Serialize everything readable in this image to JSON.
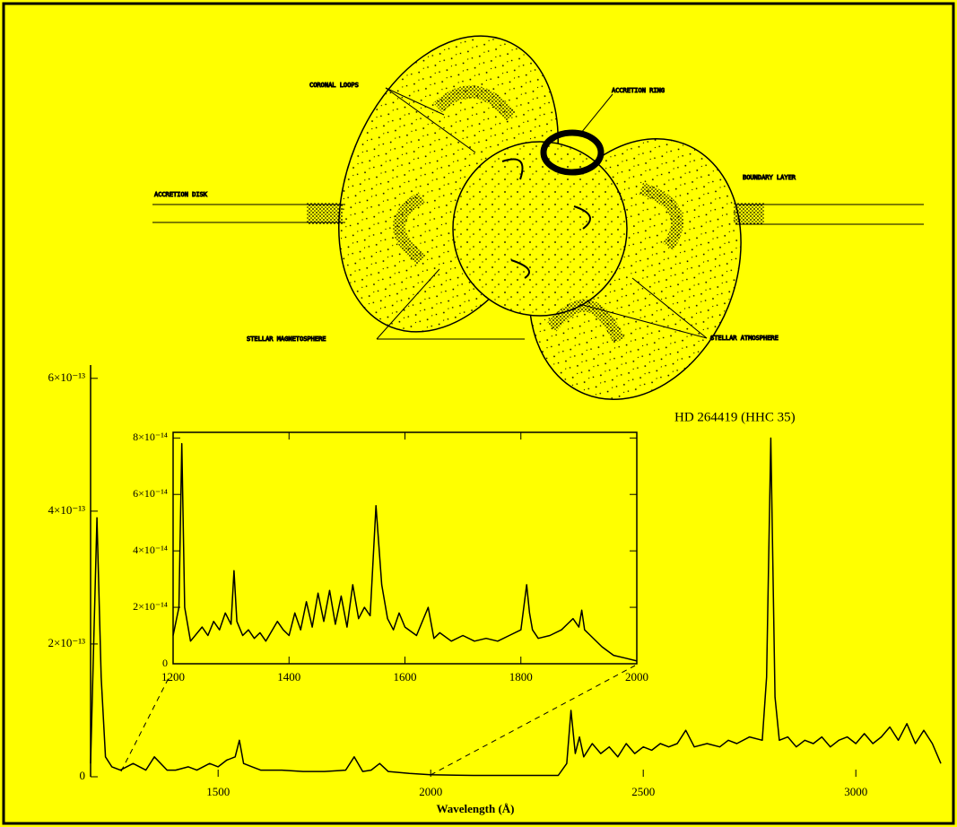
{
  "diagram": {
    "labels": [
      "CORONAL LOOPS",
      "ACCRETION RING",
      "ACCRETION DISK",
      "BOUNDARY LAYER",
      "STELLAR MAGNETOSPHERE",
      "STELLAR ATMOSPHERE"
    ]
  },
  "chart_data": [
    {
      "type": "line",
      "annotation": "HD 264419 (HHC 35)",
      "xlabel": "Wavelength (Å)",
      "xlim": [
        1200,
        3200
      ],
      "xticks": [
        1500,
        2000,
        2500,
        3000
      ],
      "ylim": [
        0,
        6.2e-13
      ],
      "yticks": [
        0,
        {
          "value": 2e-13,
          "label": "2×10⁻¹³"
        },
        {
          "value": 4e-13,
          "label": "4×10⁻¹³"
        },
        {
          "value": 6e-13,
          "label": "6×10⁻¹³"
        }
      ],
      "grid": false,
      "color": "#000000",
      "x": [
        1200,
        1215,
        1225,
        1235,
        1250,
        1270,
        1300,
        1330,
        1350,
        1380,
        1400,
        1430,
        1450,
        1480,
        1500,
        1520,
        1540,
        1550,
        1560,
        1580,
        1600,
        1650,
        1700,
        1750,
        1800,
        1820,
        1840,
        1860,
        1880,
        1900,
        1950,
        2000,
        2100,
        2200,
        2300,
        2320,
        2330,
        2340,
        2350,
        2360,
        2380,
        2400,
        2420,
        2440,
        2460,
        2480,
        2500,
        2520,
        2540,
        2560,
        2580,
        2600,
        2620,
        2650,
        2680,
        2700,
        2720,
        2750,
        2780,
        2790,
        2800,
        2810,
        2820,
        2840,
        2860,
        2880,
        2900,
        2920,
        2940,
        2960,
        2980,
        3000,
        3020,
        3040,
        3060,
        3080,
        3100,
        3120,
        3140,
        3160,
        3180,
        3200
      ],
      "values": [
        2e-14,
        3.9e-13,
        1.5e-13,
        3e-14,
        1.5e-14,
        1e-14,
        2e-14,
        1e-14,
        3e-14,
        1e-14,
        1e-14,
        1.5e-14,
        1e-14,
        2e-14,
        1.5e-14,
        2.5e-14,
        3e-14,
        5.5e-14,
        2e-14,
        1.5e-14,
        1e-14,
        1e-14,
        8e-15,
        8e-15,
        1e-14,
        3e-14,
        8e-15,
        1e-14,
        2e-14,
        8e-15,
        5e-15,
        3e-15,
        2e-15,
        2e-15,
        2e-15,
        2e-14,
        1e-13,
        3.5e-14,
        6e-14,
        3e-14,
        5e-14,
        3.5e-14,
        4.5e-14,
        3e-14,
        5e-14,
        3.5e-14,
        4.5e-14,
        4e-14,
        5e-14,
        4.5e-14,
        5e-14,
        7e-14,
        4.5e-14,
        5e-14,
        4.5e-14,
        5.5e-14,
        5e-14,
        6e-14,
        5.5e-14,
        1.5e-13,
        5.1e-13,
        1.2e-13,
        5.5e-14,
        6e-14,
        4.5e-14,
        5.5e-14,
        5e-14,
        6e-14,
        4.5e-14,
        5.5e-14,
        6e-14,
        5e-14,
        6.5e-14,
        5e-14,
        6e-14,
        7.5e-14,
        5.5e-14,
        8e-14,
        5e-14,
        7e-14,
        5e-14,
        2e-14
      ]
    },
    {
      "type": "line",
      "xlim": [
        1200,
        2000
      ],
      "xticks": [
        1200,
        1400,
        1600,
        1800,
        2000
      ],
      "ylim": [
        0,
        8.2e-14
      ],
      "yticks": [
        0,
        {
          "value": 2e-14,
          "label": "2×10⁻¹⁴"
        },
        {
          "value": 4e-14,
          "label": "4×10⁻¹⁴"
        },
        {
          "value": 6e-14,
          "label": "6×10⁻¹⁴"
        },
        {
          "value": 8e-14,
          "label": "8×10⁻¹⁴"
        }
      ],
      "grid": false,
      "color": "#000000",
      "x": [
        1200,
        1210,
        1215,
        1220,
        1230,
        1250,
        1260,
        1270,
        1280,
        1290,
        1300,
        1305,
        1310,
        1320,
        1330,
        1340,
        1350,
        1360,
        1380,
        1390,
        1400,
        1410,
        1420,
        1430,
        1440,
        1450,
        1460,
        1470,
        1480,
        1490,
        1500,
        1510,
        1520,
        1530,
        1540,
        1550,
        1560,
        1570,
        1580,
        1590,
        1600,
        1620,
        1640,
        1650,
        1660,
        1680,
        1700,
        1720,
        1740,
        1760,
        1780,
        1800,
        1810,
        1815,
        1820,
        1830,
        1850,
        1870,
        1890,
        1900,
        1905,
        1910,
        1920,
        1940,
        1960,
        1980,
        2000
      ],
      "values": [
        1e-14,
        2e-14,
        7.8e-14,
        2e-14,
        8e-15,
        1.3e-14,
        1e-14,
        1.5e-14,
        1.2e-14,
        1.8e-14,
        1.4e-14,
        3.3e-14,
        1.5e-14,
        1e-14,
        1.2e-14,
        9e-15,
        1.1e-14,
        8e-15,
        1.5e-14,
        1.2e-14,
        1e-14,
        1.8e-14,
        1.2e-14,
        2.2e-14,
        1.3e-14,
        2.5e-14,
        1.5e-14,
        2.6e-14,
        1.4e-14,
        2.4e-14,
        1.3e-14,
        2.8e-14,
        1.6e-14,
        2e-14,
        1.7e-14,
        5.6e-14,
        2.8e-14,
        1.6e-14,
        1.2e-14,
        1.8e-14,
        1.3e-14,
        1e-14,
        2e-14,
        9e-15,
        1.1e-14,
        8e-15,
        1e-14,
        8e-15,
        9e-15,
        8e-15,
        1e-14,
        1.2e-14,
        2.8e-14,
        1.8e-14,
        1.2e-14,
        9e-15,
        1e-14,
        1.2e-14,
        1.6e-14,
        1.3e-14,
        1.9e-14,
        1.2e-14,
        1e-14,
        6e-15,
        3e-15,
        2e-15,
        1e-15
      ]
    }
  ]
}
